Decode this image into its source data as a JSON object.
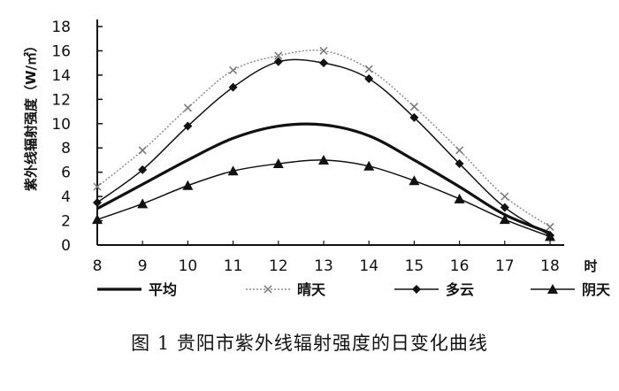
{
  "caption": "图 1  贵阳市紫外线辐射强度的日变化曲线",
  "chart_data": {
    "type": "line",
    "title": "",
    "xlabel": "时",
    "ylabel": "紫外线辐射强度（W/㎡）",
    "x": [
      8,
      9,
      10,
      11,
      12,
      13,
      14,
      15,
      16,
      17,
      18
    ],
    "xlim": [
      8,
      18
    ],
    "ylim": [
      0,
      18
    ],
    "yticks": [
      0,
      2,
      4,
      6,
      8,
      10,
      12,
      14,
      16,
      18
    ],
    "grid": false,
    "legend_position": "bottom",
    "series": [
      {
        "name": "平均",
        "values": [
          3.0,
          5.0,
          7.0,
          8.8,
          9.8,
          9.9,
          9.0,
          7.0,
          4.8,
          2.5,
          1.0
        ],
        "marker": "none",
        "style": "thick-solid",
        "color": "#111111"
      },
      {
        "name": "晴天",
        "values": [
          4.8,
          7.8,
          11.3,
          14.4,
          15.6,
          16.0,
          14.5,
          11.4,
          7.8,
          4.0,
          1.5
        ],
        "marker": "x",
        "style": "dotted",
        "color": "#888888"
      },
      {
        "name": "多云",
        "values": [
          3.5,
          6.2,
          9.8,
          13.0,
          15.1,
          15.0,
          13.7,
          10.5,
          6.7,
          3.1,
          0.8
        ],
        "marker": "diamond",
        "style": "solid",
        "color": "#111111"
      },
      {
        "name": "阴天",
        "values": [
          2.1,
          3.4,
          4.9,
          6.1,
          6.7,
          7.0,
          6.5,
          5.3,
          3.8,
          2.1,
          0.7
        ],
        "marker": "triangle",
        "style": "solid",
        "color": "#111111"
      }
    ]
  }
}
